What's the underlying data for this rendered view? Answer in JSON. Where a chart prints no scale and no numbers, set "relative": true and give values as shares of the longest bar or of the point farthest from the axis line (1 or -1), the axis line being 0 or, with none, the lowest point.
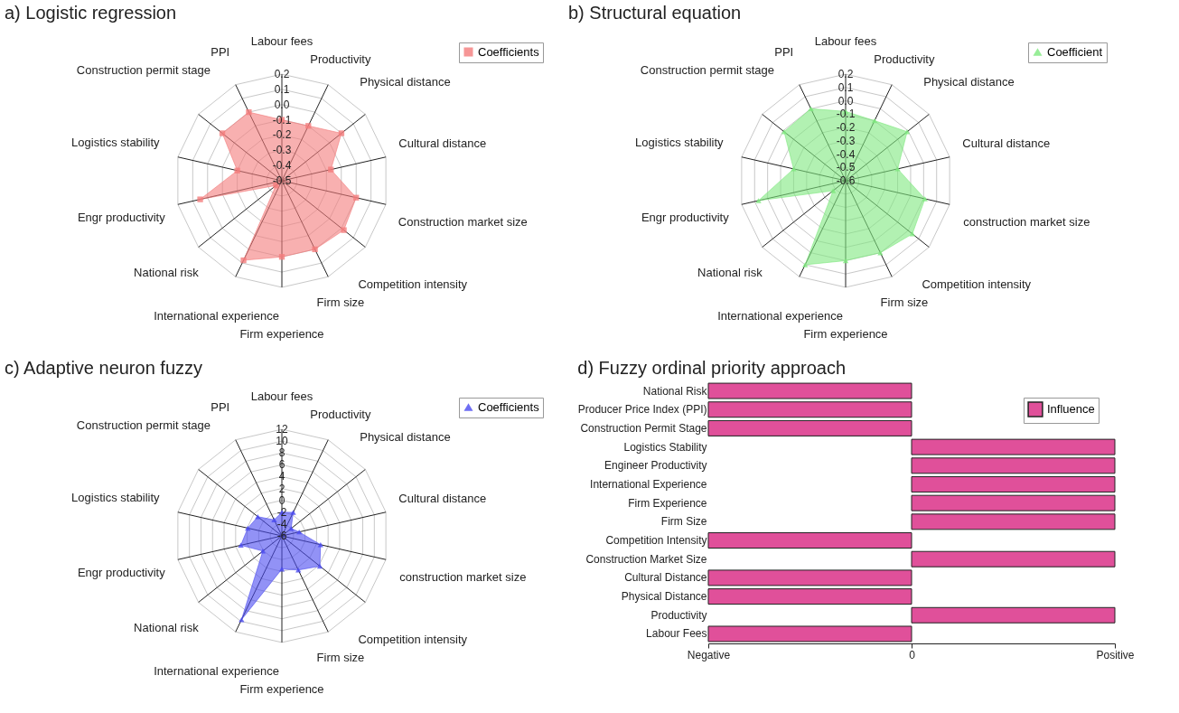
{
  "chart_data": [
    {
      "type": "radar",
      "title": "a) Logistic regression",
      "categories": [
        "Labour fees",
        "Productivity",
        "Physical distance",
        "Cultural distance",
        "Construction market size",
        "Competition intensity",
        "Firm size",
        "Firm experience",
        "International experience",
        "National risk",
        "Engr productivity",
        "Logistics stability",
        "Construction permit stage",
        "PPI"
      ],
      "series": [
        {
          "name": "Coefficients",
          "color": "#f47c7c",
          "values": [
            -0.1,
            -0.1,
            0.0,
            -0.17,
            0.0,
            0.02,
            0.0,
            0.0,
            0.08,
            -0.45,
            0.05,
            -0.2,
            0.0,
            0.0
          ]
        }
      ],
      "ylim": [
        -0.5,
        0.2
      ],
      "yticks": [
        -0.5,
        -0.4,
        -0.3,
        -0.2,
        -0.1,
        {
          "value": 0,
          "label": "0.0"
        },
        0.1,
        0.2
      ],
      "grid": true,
      "legend": "top right",
      "marker": "square"
    },
    {
      "type": "radar",
      "title": "b) Structural equation",
      "categories": [
        "Labour fees",
        "Productivity",
        "Physical distance",
        "Cultural distance",
        "construction market size",
        "Competition intensity",
        "Firm size",
        "Firm experience",
        "International experience",
        "National risk",
        "Engr productivity",
        "Logistics stability",
        "Construction permit stage",
        "PPI"
      ],
      "series": [
        {
          "name": "Coefficient",
          "color": "#7ee87e",
          "values": [
            -0.08,
            -0.1,
            -0.01,
            -0.2,
            0.01,
            0.04,
            0.0,
            0.0,
            0.1,
            -0.48,
            0.07,
            -0.2,
            -0.01,
            0.0
          ]
        }
      ],
      "ylim": [
        -0.6,
        0.2
      ],
      "yticks": [
        -0.6,
        -0.5,
        -0.4,
        -0.3,
        -0.2,
        -0.1,
        {
          "value": 0,
          "label": "0.0"
        },
        0.1,
        0.2
      ],
      "grid": true,
      "legend": "top right",
      "marker": "triangle"
    },
    {
      "type": "radar",
      "title": "c) Adaptive neuron fuzzy",
      "categories": [
        "Labour fees",
        "Productivity",
        "Physical distance",
        "Cultural distance",
        "construction market size",
        "Competition intensity",
        "Firm size",
        "Firm experience",
        "International experience",
        "National risk",
        "Engr productivity",
        "Logistics stability",
        "Construction permit stage",
        "PPI"
      ],
      "series": [
        {
          "name": "Coefficients",
          "color": "#4a4af0",
          "values": [
            -2,
            -1.6,
            -4,
            -3,
            0.7,
            2.2,
            0.4,
            -0.4,
            9.7,
            -1.9,
            1.1,
            -0.1,
            -0.8,
            -3
          ]
        }
      ],
      "ylim": [
        -6,
        12
      ],
      "yticks": [
        -6,
        -4,
        -2,
        0,
        2,
        4,
        6,
        8,
        10,
        12
      ],
      "grid": true,
      "legend": "top right",
      "marker": "triangle"
    },
    {
      "type": "bar",
      "title": "d) Fuzzy ordinal priority approach",
      "orientation": "horizontal",
      "categories": [
        "National Risk",
        "Producer Price Index (PPI)",
        "Construction Permit Stage",
        "Logistics Stability",
        "Engineer Productivity",
        "International Experience",
        "Firm Experience",
        "Firm Size",
        "Competition Intensity",
        "Construction Market Size",
        "Cultural Distance",
        "Physical Distance",
        "Productivity",
        "Labour Fees"
      ],
      "series": [
        {
          "name": "Influence",
          "color": "#e0509a",
          "values": [
            -1,
            -1,
            -1,
            1,
            1,
            1,
            1,
            1,
            -1,
            1,
            -1,
            -1,
            1,
            -1
          ]
        }
      ],
      "relative": true,
      "annotations": [
        "Negative",
        "0",
        "Positive"
      ],
      "legend": "top right"
    }
  ]
}
